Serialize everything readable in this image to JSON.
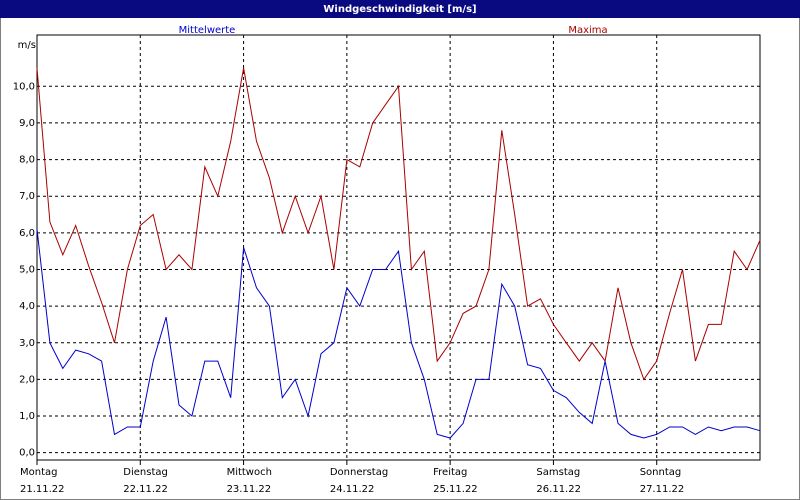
{
  "chart_data": {
    "type": "line",
    "title": "Windgeschwindigkeit [m/s]",
    "y_unit": "m/s",
    "x": [
      0,
      3,
      6,
      9,
      12,
      15,
      18,
      21,
      24,
      27,
      30,
      33,
      36,
      39,
      42,
      45,
      48,
      51,
      54,
      57,
      60,
      63,
      66,
      69,
      72,
      75,
      78,
      81,
      84,
      87,
      90,
      93,
      96,
      99,
      102,
      105,
      108,
      111,
      114,
      117,
      120,
      123,
      126,
      129,
      132,
      135,
      138,
      141,
      144,
      147,
      150,
      153,
      156,
      159,
      162,
      165,
      168
    ],
    "xlim": [
      0,
      168
    ],
    "xticks": [
      {
        "value": 0,
        "label": "Montag"
      },
      {
        "value": 24,
        "label": "Dienstag"
      },
      {
        "value": 48,
        "label": "Mittwoch"
      },
      {
        "value": 72,
        "label": "Donnerstag"
      },
      {
        "value": 96,
        "label": "Freitag"
      },
      {
        "value": 120,
        "label": "Samstag"
      },
      {
        "value": 144,
        "label": "Sonntag"
      }
    ],
    "xtick_dates": [
      "21.11.22",
      "22.11.22",
      "23.11.22",
      "24.11.22",
      "25.11.22",
      "26.11.22",
      "27.11.22"
    ],
    "ylim": [
      -0.2,
      11.4
    ],
    "yticks": [
      {
        "value": 0,
        "label": "0,0"
      },
      {
        "value": 1,
        "label": "1,0"
      },
      {
        "value": 2,
        "label": "2,0"
      },
      {
        "value": 3,
        "label": "3,0"
      },
      {
        "value": 4,
        "label": "4,0"
      },
      {
        "value": 5,
        "label": "5,0"
      },
      {
        "value": 6,
        "label": "6,0"
      },
      {
        "value": 7,
        "label": "7,0"
      },
      {
        "value": 8,
        "label": "8,0"
      },
      {
        "value": 9,
        "label": "9,0"
      },
      {
        "value": 10,
        "label": "10,0"
      }
    ],
    "grid": true,
    "series": [
      {
        "name": "Mittelwerte",
        "color": "#0000cc",
        "values": [
          6.1,
          3.0,
          2.3,
          2.8,
          2.7,
          2.5,
          0.5,
          0.7,
          0.7,
          2.5,
          3.7,
          1.3,
          1.0,
          2.5,
          2.5,
          1.5,
          5.6,
          4.5,
          4.0,
          1.5,
          2.0,
          1.0,
          2.7,
          3.0,
          4.5,
          4.0,
          5.0,
          5.0,
          5.5,
          3.0,
          2.0,
          0.5,
          0.4,
          0.8,
          2.0,
          2.0,
          4.6,
          4.0,
          2.4,
          2.3,
          1.7,
          1.5,
          1.1,
          0.8,
          2.5,
          0.8,
          0.5,
          0.4,
          0.5,
          0.7,
          0.7,
          0.5,
          0.7,
          0.6,
          0.7,
          0.7,
          0.6
        ]
      },
      {
        "name": "Maxima",
        "color": "#aa0000",
        "values": [
          10.5,
          6.3,
          5.4,
          6.2,
          5.1,
          4.1,
          3.0,
          5.0,
          6.2,
          6.5,
          5.0,
          5.4,
          5.0,
          7.8,
          7.0,
          8.5,
          10.5,
          8.5,
          7.5,
          6.0,
          7.0,
          6.0,
          7.0,
          5.0,
          8.0,
          7.8,
          9.0,
          9.5,
          10.0,
          5.0,
          5.5,
          2.5,
          3.0,
          3.8,
          4.0,
          5.0,
          8.8,
          6.5,
          4.0,
          4.2,
          3.5,
          3.0,
          2.5,
          3.0,
          2.5,
          4.5,
          3.0,
          2.0,
          2.5,
          3.8,
          5.0,
          2.5,
          3.5,
          3.5,
          5.5,
          5.0,
          5.8
        ]
      }
    ]
  }
}
